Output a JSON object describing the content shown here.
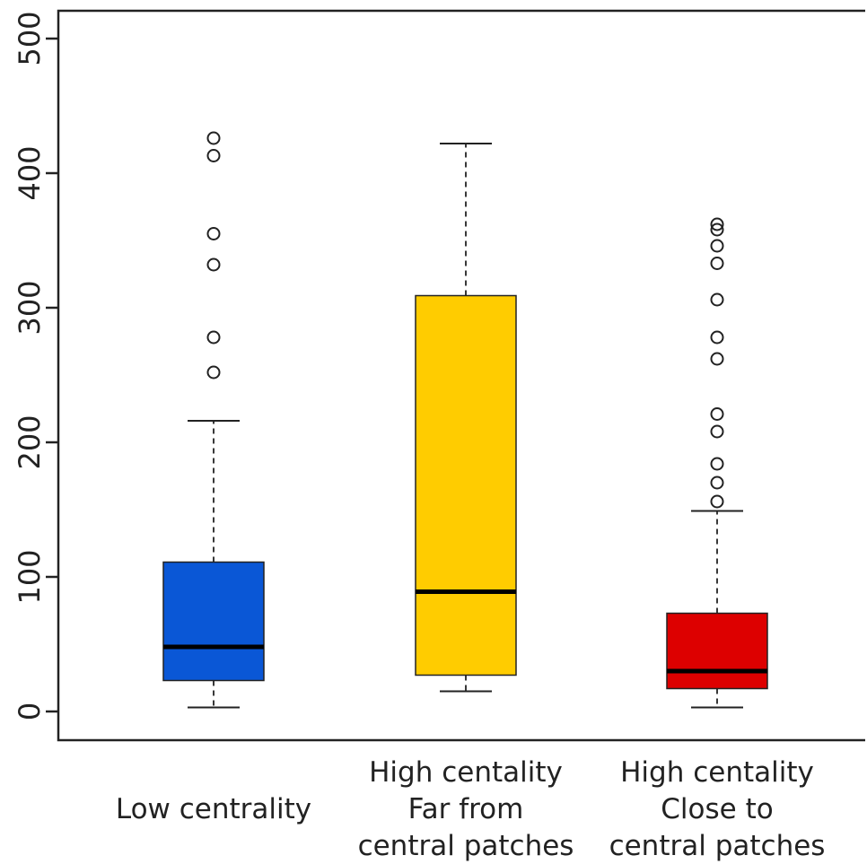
{
  "chart_data": {
    "type": "boxplot",
    "title": "",
    "xlabel": "",
    "ylabel": "",
    "ylim": [
      0,
      500
    ],
    "yticks": [
      0,
      100,
      200,
      300,
      400,
      500
    ],
    "grid": false,
    "categories": [
      [
        "Low centrality"
      ],
      [
        "High centality",
        "Far from",
        "central patches"
      ],
      [
        "High centality",
        "Close to",
        "central patches"
      ]
    ],
    "boxes": [
      {
        "color": "#0a57d6",
        "whisker_low": 3,
        "q1": 23,
        "median": 48,
        "q3": 111,
        "whisker_high": 216,
        "outliers": [
          252,
          278,
          332,
          355,
          413,
          426
        ]
      },
      {
        "color": "#ffcc00",
        "whisker_low": 15,
        "q1": 27,
        "median": 89,
        "q3": 309,
        "whisker_high": 422,
        "outliers": []
      },
      {
        "color": "#dd0000",
        "whisker_low": 3,
        "q1": 17,
        "median": 30,
        "q3": 73,
        "whisker_high": 149,
        "outliers": [
          156,
          170,
          184,
          208,
          221,
          262,
          278,
          306,
          333,
          346,
          358,
          362
        ]
      }
    ]
  }
}
